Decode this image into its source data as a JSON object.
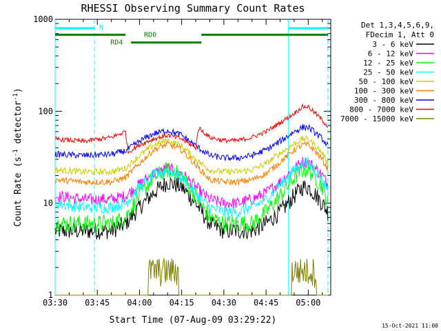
{
  "chart_data": {
    "type": "line",
    "title": "RHESSI Observing Summary Count Rates",
    "xlabel": "Start Time (07-Aug-09 03:29:22)",
    "ylabel_main": "Count Rate (s",
    "ylabel_sup1": "-1",
    "ylabel_mid": " detector",
    "ylabel_sup2": "-1",
    "ylabel_end": ")",
    "yscale": "log",
    "ylim": [
      1,
      1000
    ],
    "xlim_minutes": [
      0,
      98
    ],
    "x_ticks": [
      {
        "label": "03:30",
        "t": 0
      },
      {
        "label": "03:45",
        "t": 15
      },
      {
        "label": "04:00",
        "t": 30
      },
      {
        "label": "04:15",
        "t": 45
      },
      {
        "label": "04:30",
        "t": 60
      },
      {
        "label": "04:45",
        "t": 75
      },
      {
        "label": "05:00",
        "t": 90
      }
    ],
    "y_ticks": [
      {
        "label": "1",
        "v": 1
      },
      {
        "label": "10",
        "v": 10
      },
      {
        "label": "100",
        "v": 100
      },
      {
        "label": "1000",
        "v": 1000
      }
    ],
    "legend_header": [
      "Det 1,3,4,5,6,9,",
      "FDecim 1, Att 0"
    ],
    "series": [
      {
        "name": "3 - 6 keV",
        "color": "#000000",
        "x": [
          0,
          10,
          20,
          25,
          30,
          35,
          40,
          45,
          50,
          55,
          60,
          65,
          70,
          75,
          80,
          85,
          88,
          90,
          92,
          95,
          97
        ],
        "y": [
          5,
          5,
          5,
          6,
          9,
          13,
          17,
          15,
          10,
          6,
          5,
          5,
          5,
          6,
          8,
          12,
          15,
          15,
          13,
          10,
          8
        ]
      },
      {
        "name": "6 - 12 keV",
        "color": "#ff00ff",
        "x": [
          0,
          10,
          20,
          25,
          30,
          35,
          40,
          45,
          50,
          55,
          60,
          65,
          70,
          75,
          80,
          85,
          88,
          90,
          92,
          95,
          97
        ],
        "y": [
          12,
          11,
          11,
          12,
          16,
          21,
          24,
          21,
          15,
          11,
          10,
          10,
          11,
          13,
          17,
          24,
          28,
          28,
          25,
          20,
          16
        ]
      },
      {
        "name": "12 - 25 keV",
        "color": "#00ff00",
        "x": [
          0,
          10,
          20,
          25,
          30,
          35,
          40,
          45,
          50,
          55,
          60,
          65,
          70,
          75,
          80,
          85,
          88,
          90,
          92,
          95,
          97
        ],
        "y": [
          6,
          6,
          6,
          7,
          12,
          19,
          23,
          20,
          12,
          7,
          6,
          6,
          6,
          8,
          12,
          19,
          23,
          23,
          20,
          15,
          10
        ]
      },
      {
        "name": "25 - 50 keV",
        "color": "#00ffff",
        "x": [
          0,
          10,
          20,
          25,
          30,
          35,
          40,
          45,
          50,
          55,
          60,
          65,
          70,
          75,
          80,
          85,
          88,
          90,
          92,
          95,
          97
        ],
        "y": [
          10,
          9,
          9,
          10,
          15,
          20,
          23,
          19,
          13,
          9,
          8,
          8,
          9,
          11,
          16,
          23,
          27,
          27,
          24,
          18,
          14
        ]
      },
      {
        "name": "50 - 100 keV",
        "color": "#cccc00",
        "x": [
          0,
          10,
          20,
          25,
          30,
          35,
          40,
          45,
          50,
          55,
          60,
          65,
          70,
          75,
          80,
          85,
          88,
          90,
          92,
          95,
          97
        ],
        "y": [
          23,
          22,
          22,
          24,
          33,
          43,
          48,
          42,
          30,
          23,
          22,
          22,
          23,
          27,
          35,
          44,
          50,
          50,
          44,
          35,
          27
        ]
      },
      {
        "name": "100 - 300 keV",
        "color": "#ff7f00",
        "x": [
          0,
          10,
          20,
          25,
          30,
          35,
          40,
          45,
          50,
          55,
          60,
          65,
          70,
          75,
          80,
          85,
          88,
          90,
          92,
          95,
          97
        ],
        "y": [
          18,
          17,
          17,
          19,
          27,
          38,
          44,
          38,
          26,
          18,
          17,
          17,
          18,
          21,
          28,
          38,
          43,
          43,
          38,
          30,
          23
        ]
      },
      {
        "name": "300 - 800 keV",
        "color": "#0000ff",
        "x": [
          0,
          10,
          20,
          25,
          30,
          35,
          40,
          45,
          50,
          55,
          60,
          65,
          70,
          75,
          80,
          85,
          88,
          90,
          92,
          95,
          97
        ],
        "y": [
          34,
          33,
          34,
          37,
          47,
          57,
          62,
          55,
          42,
          33,
          31,
          31,
          33,
          38,
          47,
          60,
          67,
          67,
          60,
          50,
          42
        ]
      },
      {
        "name": "800 - 7000 keV",
        "color": "#ff0000",
        "x": [
          0,
          10,
          20,
          25,
          26,
          30,
          35,
          40,
          45,
          50,
          51,
          55,
          60,
          65,
          70,
          75,
          80,
          85,
          88,
          90,
          92,
          95,
          97
        ],
        "y": [
          50,
          47,
          52,
          60,
          36,
          43,
          50,
          55,
          50,
          40,
          66,
          52,
          48,
          48,
          52,
          60,
          75,
          95,
          112,
          112,
          98,
          80,
          68
        ]
      },
      {
        "name": "7000 - 15000 keV",
        "color": "#808000",
        "x": [
          0,
          33,
          34,
          43,
          44,
          84,
          85,
          92,
          93,
          97
        ],
        "y": [
          1,
          1,
          2.5,
          2.5,
          1,
          1,
          2.5,
          2.5,
          1,
          1
        ]
      }
    ],
    "annotations": {
      "attenuator_segments": [
        {
          "label": "N",
          "color": "#00ffff",
          "t_start": 0,
          "t_end": 14,
          "v": 800
        },
        {
          "label": "",
          "color": "#00ffff",
          "t_start": 83,
          "t_end": 97,
          "v": 800
        }
      ],
      "decimation_segments": [
        {
          "label": "",
          "color": "#008000",
          "t_start": 0,
          "t_end": 97,
          "v": 680,
          "gap_start": 25,
          "gap_end": 52
        },
        {
          "label": "RD0",
          "color": "#008000",
          "t_start": 25,
          "t_end": 52,
          "v": 680,
          "hidden_line": true
        },
        {
          "label": "RD4",
          "color": "#008000",
          "t_start": 27,
          "t_end": 52,
          "v": 560
        }
      ],
      "vertical_solid": [
        0,
        83
      ],
      "vertical_dashed": [
        14,
        97
      ],
      "vertical_color": "#00ffff"
    }
  },
  "footer": {
    "timestamp": "15-Oct-2021 11:00"
  }
}
